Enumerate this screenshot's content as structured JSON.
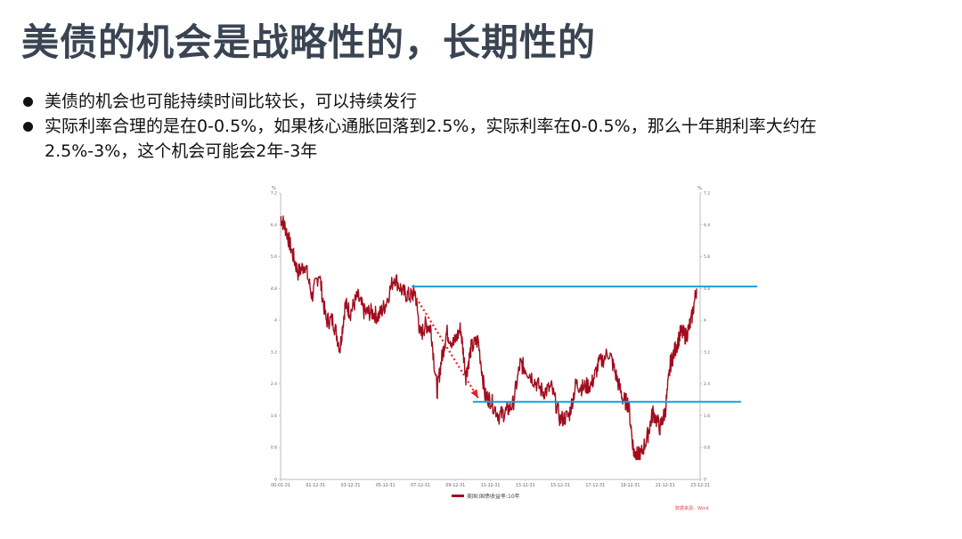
{
  "slide": {
    "title": "美债的机会是战略性的，长期性的",
    "bullets": [
      "美债的机会也可能持续时间比较长，可以持续发行",
      "实际利率合理的是在0-0.5%，如果核心通胀回落到2.5%，实际利率在0-0.5%，那么十年期利率大约在2.5%-3%，这个机会可能会2年-3年"
    ]
  },
  "colors": {
    "series": "#a10d1e",
    "reference_line": "#1aa0d8",
    "arrow": "#e82020",
    "title": "#3a4452"
  },
  "chart_data": {
    "type": "line",
    "title": "",
    "ylabel_left": "%",
    "ylabel_right": "%",
    "ylim": [
      0,
      7.2
    ],
    "yticks": [
      "0",
      "0.8",
      "1.6",
      "2.4",
      "3.2",
      "4",
      "4.8",
      "5.6",
      "6.4",
      "7.2"
    ],
    "xticks": [
      "00-01-31",
      "01-12-31",
      "03-12-31",
      "05-12-31",
      "07-12-31",
      "09-12-31",
      "11-12-31",
      "13-12-31",
      "15-12-31",
      "17-12-31",
      "19-12-31",
      "21-12-31",
      "23-12-31"
    ],
    "legend": "美国:国债收益率:10年",
    "source": "数据来源：Wind",
    "series": [
      {
        "name": "美国:国债收益率:10年",
        "x": [
          2000.0,
          2000.3,
          2000.6,
          2001.0,
          2001.4,
          2001.8,
          2002.2,
          2002.6,
          2003.0,
          2003.4,
          2003.7,
          2004.0,
          2004.4,
          2004.8,
          2005.2,
          2005.6,
          2006.0,
          2006.5,
          2007.0,
          2007.4,
          2007.7,
          2008.0,
          2008.3,
          2008.6,
          2008.95,
          2009.2,
          2009.5,
          2009.9,
          2010.3,
          2010.6,
          2010.9,
          2011.3,
          2011.7,
          2012.0,
          2012.5,
          2012.9,
          2013.3,
          2013.7,
          2014.0,
          2014.5,
          2015.0,
          2015.5,
          2016.0,
          2016.5,
          2016.9,
          2017.3,
          2017.8,
          2018.2,
          2018.8,
          2019.2,
          2019.6,
          2019.9,
          2020.2,
          2020.4,
          2020.6,
          2021.0,
          2021.3,
          2021.7,
          2022.0,
          2022.3,
          2022.6,
          2022.9,
          2023.2,
          2023.5,
          2023.8
        ],
        "y": [
          6.6,
          6.3,
          5.8,
          5.2,
          5.4,
          4.6,
          5.2,
          4.0,
          4.0,
          3.3,
          4.4,
          4.2,
          4.6,
          4.2,
          4.2,
          4.1,
          4.4,
          5.1,
          4.7,
          4.6,
          4.7,
          3.6,
          3.9,
          3.8,
          2.2,
          3.0,
          3.7,
          3.4,
          3.8,
          2.6,
          3.3,
          3.5,
          2.1,
          2.0,
          1.6,
          1.7,
          1.9,
          2.9,
          2.8,
          2.5,
          2.2,
          2.3,
          1.5,
          1.6,
          2.4,
          2.3,
          2.4,
          2.9,
          3.2,
          2.6,
          2.0,
          1.9,
          0.7,
          0.6,
          0.6,
          1.1,
          1.7,
          1.3,
          1.7,
          2.9,
          3.3,
          3.7,
          3.6,
          4.0,
          4.8
        ]
      }
    ],
    "reference_lines": [
      {
        "y": 4.85,
        "from_x": 2007.5,
        "label": ""
      },
      {
        "y": 1.95,
        "from_x": 2011.0,
        "label": ""
      }
    ],
    "arrow": {
      "from": [
        2007.5,
        4.75
      ],
      "to": [
        2011.3,
        2.05
      ]
    }
  }
}
